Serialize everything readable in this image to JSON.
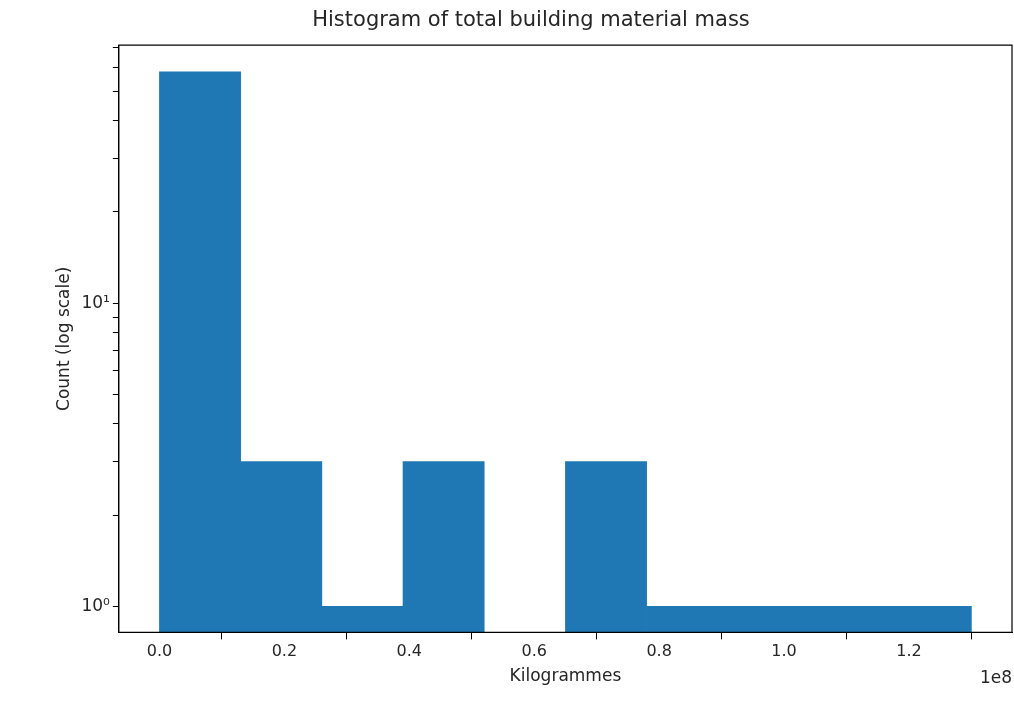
{
  "chart_data": {
    "type": "histogram",
    "title": "Histogram of total building material mass",
    "xlabel": "Kilogrammes",
    "ylabel": "Count (log scale)",
    "bins": [
      0,
      0.13,
      0.26,
      0.39,
      0.52,
      0.65,
      0.78,
      0.91,
      1.04,
      1.17,
      1.3
    ],
    "values": [
      58,
      3,
      1,
      3,
      null,
      3,
      1,
      1,
      1,
      1
    ],
    "color": "#1f77b4",
    "log": "y",
    "grid": false,
    "xlim": [
      -0.065,
      1.365
    ],
    "xticks": [
      {
        "value": 0,
        "label": "0.0"
      },
      0.2,
      0.4,
      0.6,
      0.8,
      {
        "value": 1,
        "label": "1.0"
      },
      1.2
    ],
    "ylim": [
      0.82,
      71
    ],
    "yticks": [
      {
        "value": 1,
        "label": "10⁰"
      },
      {
        "value": 2,
        "label": null
      },
      {
        "value": 3,
        "label": null
      },
      {
        "value": 4,
        "label": null
      },
      {
        "value": 5,
        "label": null
      },
      {
        "value": 6,
        "label": null
      },
      {
        "value": 7,
        "label": null
      },
      {
        "value": 8,
        "label": null
      },
      {
        "value": 9,
        "label": null
      },
      {
        "value": 10,
        "label": "10¹"
      },
      {
        "value": 20,
        "label": null
      },
      {
        "value": 30,
        "label": null
      },
      {
        "value": 40,
        "label": null
      },
      {
        "value": 50,
        "label": null
      },
      {
        "value": 60,
        "label": null
      },
      {
        "value": 70,
        "label": null
      }
    ],
    "annotations": [
      "1e8"
    ]
  }
}
